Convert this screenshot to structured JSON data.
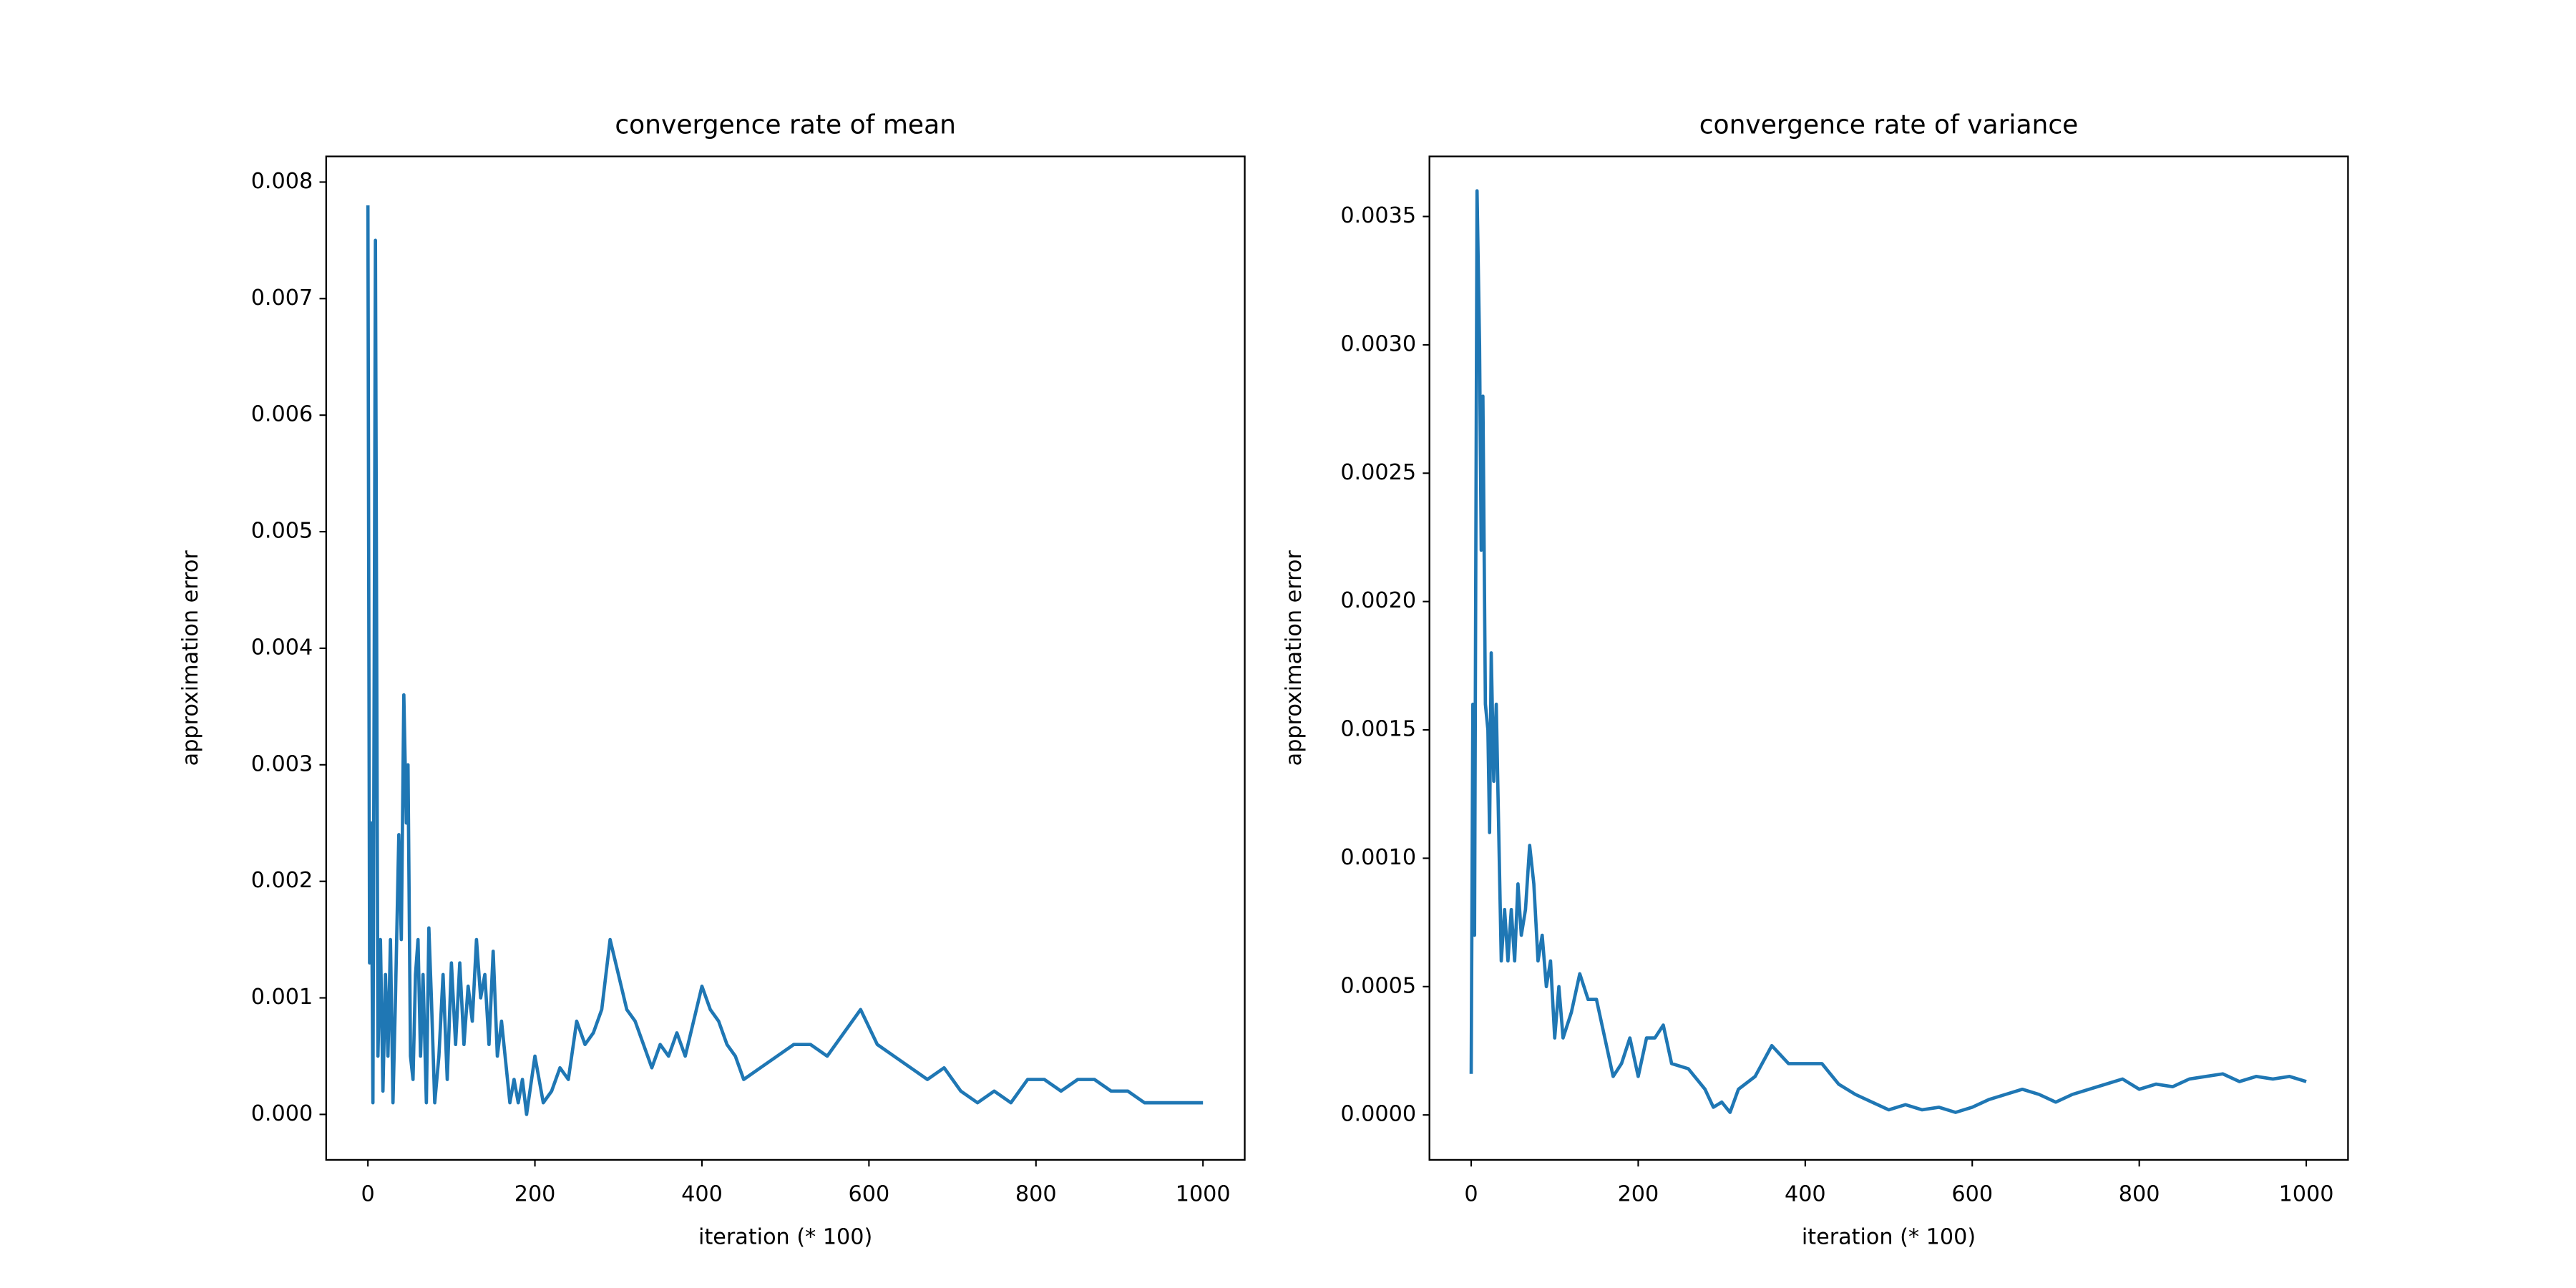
{
  "chart_data": [
    {
      "type": "line",
      "title": "convergence rate of mean",
      "x_label": "iteration (* 100)",
      "y_label": "approximation error",
      "color": "#1f77b4",
      "xlim": [
        -50,
        1050
      ],
      "xticks": [
        0,
        200,
        400,
        600,
        800,
        1000
      ],
      "ylim": [
        -0.00039,
        0.00822
      ],
      "yticks": [
        {
          "value": 0,
          "label": "0.000"
        },
        {
          "value": 0.001,
          "label": "0.001"
        },
        {
          "value": 0.002,
          "label": "0.002"
        },
        {
          "value": 0.003,
          "label": "0.003"
        },
        {
          "value": 0.004,
          "label": "0.004"
        },
        {
          "value": 0.005,
          "label": "0.005"
        },
        {
          "value": 0.006,
          "label": "0.006"
        },
        {
          "value": 0.007,
          "label": "0.007"
        },
        {
          "value": 0.008,
          "label": "0.008"
        }
      ],
      "x": [
        0,
        2,
        4,
        6,
        9,
        12,
        15,
        18,
        21,
        24,
        27,
        30,
        33,
        37,
        40,
        43,
        46,
        48,
        51,
        54,
        57,
        60,
        63,
        66,
        70,
        73,
        76,
        80,
        85,
        90,
        95,
        100,
        105,
        110,
        115,
        120,
        125,
        130,
        135,
        140,
        145,
        150,
        155,
        160,
        170,
        175,
        180,
        185,
        190,
        200,
        210,
        220,
        230,
        240,
        250,
        260,
        270,
        280,
        290,
        300,
        310,
        320,
        330,
        340,
        350,
        360,
        370,
        380,
        390,
        400,
        410,
        420,
        430,
        440,
        450,
        470,
        490,
        510,
        530,
        550,
        570,
        590,
        610,
        630,
        650,
        670,
        690,
        710,
        730,
        750,
        770,
        790,
        810,
        830,
        850,
        870,
        890,
        910,
        930,
        950,
        970,
        990,
        1000
      ],
      "values": [
        0.0078,
        0.0013,
        0.0025,
        0.0001,
        0.0075,
        0.0005,
        0.0015,
        0.0002,
        0.0012,
        0.0005,
        0.0015,
        0.0001,
        0.001,
        0.0024,
        0.0015,
        0.0036,
        0.0025,
        0.003,
        0.0005,
        0.0003,
        0.0012,
        0.0015,
        0.0005,
        0.0012,
        0.0001,
        0.0016,
        0.001,
        0.0001,
        0.0005,
        0.0012,
        0.0003,
        0.0013,
        0.0006,
        0.0013,
        0.0006,
        0.0011,
        0.0008,
        0.0015,
        0.001,
        0.0012,
        0.0006,
        0.0014,
        0.0005,
        0.0008,
        0.0001,
        0.0003,
        0.0001,
        0.0003,
        0.0,
        0.0005,
        0.0001,
        0.0002,
        0.0004,
        0.0003,
        0.0008,
        0.0006,
        0.0007,
        0.0009,
        0.0015,
        0.0012,
        0.0009,
        0.0008,
        0.0006,
        0.0004,
        0.0006,
        0.0005,
        0.0007,
        0.0005,
        0.0008,
        0.0011,
        0.0009,
        0.0008,
        0.0006,
        0.0005,
        0.0003,
        0.0004,
        0.0005,
        0.0006,
        0.0006,
        0.0005,
        0.0007,
        0.0009,
        0.0006,
        0.0005,
        0.0004,
        0.0003,
        0.0004,
        0.0002,
        0.0001,
        0.0002,
        0.0001,
        0.0003,
        0.0003,
        0.0002,
        0.0003,
        0.0003,
        0.0002,
        0.0002,
        0.0001,
        0.0001,
        0.0001,
        0.0001,
        0.0001
      ]
    },
    {
      "type": "line",
      "title": "convergence rate of variance",
      "x_label": "iteration (* 100)",
      "y_label": "approximation error",
      "color": "#1f77b4",
      "xlim": [
        -50,
        1050
      ],
      "xticks": [
        0,
        200,
        400,
        600,
        800,
        1000
      ],
      "ylim": [
        -0.000175,
        0.003734
      ],
      "yticks": [
        {
          "value": 0,
          "label": "0.0000"
        },
        {
          "value": 0.0005,
          "label": "0.0005"
        },
        {
          "value": 0.001,
          "label": "0.0010"
        },
        {
          "value": 0.0015,
          "label": "0.0015"
        },
        {
          "value": 0.002,
          "label": "0.0020"
        },
        {
          "value": 0.0025,
          "label": "0.0025"
        },
        {
          "value": 0.003,
          "label": "0.0030"
        },
        {
          "value": 0.0035,
          "label": "0.0035"
        }
      ],
      "x": [
        0,
        2,
        4,
        7,
        10,
        12,
        14,
        17,
        20,
        22,
        24,
        27,
        30,
        33,
        36,
        40,
        44,
        48,
        52,
        56,
        60,
        65,
        70,
        75,
        80,
        85,
        90,
        95,
        100,
        105,
        110,
        120,
        130,
        140,
        150,
        160,
        170,
        180,
        190,
        200,
        210,
        220,
        230,
        240,
        260,
        280,
        290,
        300,
        310,
        320,
        340,
        360,
        380,
        400,
        420,
        440,
        460,
        480,
        500,
        520,
        540,
        560,
        580,
        600,
        620,
        640,
        660,
        680,
        700,
        720,
        740,
        760,
        780,
        800,
        820,
        840,
        860,
        880,
        900,
        920,
        940,
        960,
        980,
        1000
      ],
      "values": [
        0.00016,
        0.0016,
        0.0007,
        0.0036,
        0.003,
        0.0022,
        0.0028,
        0.0016,
        0.0015,
        0.0011,
        0.0018,
        0.0013,
        0.0016,
        0.0011,
        0.0006,
        0.0008,
        0.0006,
        0.0008,
        0.0006,
        0.0009,
        0.0007,
        0.0008,
        0.00105,
        0.0009,
        0.0006,
        0.0007,
        0.0005,
        0.0006,
        0.0003,
        0.0005,
        0.0003,
        0.0004,
        0.00055,
        0.00045,
        0.00045,
        0.0003,
        0.00015,
        0.0002,
        0.0003,
        0.00015,
        0.0003,
        0.0003,
        0.00035,
        0.0002,
        0.00018,
        0.0001,
        3e-05,
        5e-05,
        1e-05,
        0.0001,
        0.00015,
        0.00027,
        0.0002,
        0.0002,
        0.0002,
        0.00012,
        8e-05,
        5e-05,
        2e-05,
        4e-05,
        2e-05,
        3e-05,
        1e-05,
        3e-05,
        6e-05,
        8e-05,
        0.0001,
        8e-05,
        5e-05,
        8e-05,
        0.0001,
        0.00012,
        0.00014,
        0.0001,
        0.00012,
        0.00011,
        0.00014,
        0.00015,
        0.00016,
        0.00013,
        0.00015,
        0.00014,
        0.00015,
        0.00013
      ]
    }
  ]
}
